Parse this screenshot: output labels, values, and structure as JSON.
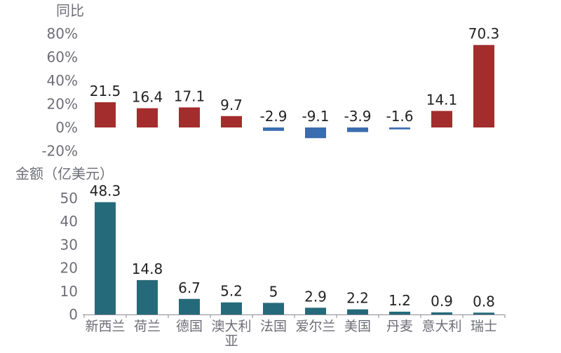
{
  "chart_data": [
    {
      "type": "bar",
      "title": "同比",
      "categories": [
        "新西兰",
        "荷兰",
        "德国",
        "澳大利亚",
        "法国",
        "爱尔兰",
        "美国",
        "丹麦",
        "意大利",
        "瑞士"
      ],
      "values": [
        21.5,
        16.4,
        17.1,
        9.7,
        -2.9,
        -9.1,
        -3.9,
        -1.6,
        14.1,
        70.3
      ],
      "value_labels": [
        "21.5",
        "16.4",
        "17.1",
        "9.7",
        "-2.9",
        "-9.1",
        "-3.9",
        "-1.6",
        "14.1",
        "70.3"
      ],
      "ylim": [
        -20,
        80
      ],
      "yticks": [
        80,
        60,
        40,
        20,
        0,
        -20
      ],
      "ytick_labels": [
        "80%",
        "60%",
        "40%",
        "20%",
        "0%",
        "-20%"
      ],
      "grid": false,
      "colors": {
        "positive": "#a32d2d",
        "negative": "#3a6cb0"
      }
    },
    {
      "type": "bar",
      "title": "金额（亿美元）",
      "categories": [
        "新西兰",
        "荷兰",
        "德国",
        "澳大利亚",
        "法国",
        "爱尔兰",
        "美国",
        "丹麦",
        "意大利",
        "瑞士"
      ],
      "category_lines": [
        [
          "新西兰"
        ],
        [
          "荷兰"
        ],
        [
          "德国"
        ],
        [
          "澳大利",
          "亚"
        ],
        [
          "法国"
        ],
        [
          "爱尔兰"
        ],
        [
          "美国"
        ],
        [
          "丹麦"
        ],
        [
          "意大利"
        ],
        [
          "瑞士"
        ]
      ],
      "values": [
        48.3,
        14.8,
        6.7,
        5.2,
        5,
        2.9,
        2.2,
        1.2,
        0.9,
        0.8
      ],
      "value_labels": [
        "48.3",
        "14.8",
        "6.7",
        "5.2",
        "5",
        "2.9",
        "2.2",
        "1.2",
        "0.9",
        "0.8"
      ],
      "ylim": [
        0,
        50
      ],
      "yticks": [
        50,
        40,
        30,
        20,
        10,
        0
      ],
      "ytick_labels": [
        "50",
        "40",
        "30",
        "20",
        "10",
        "0"
      ],
      "grid": false,
      "colors": {
        "bar": "#256a7a",
        "axis": "#8a8a94"
      }
    }
  ]
}
